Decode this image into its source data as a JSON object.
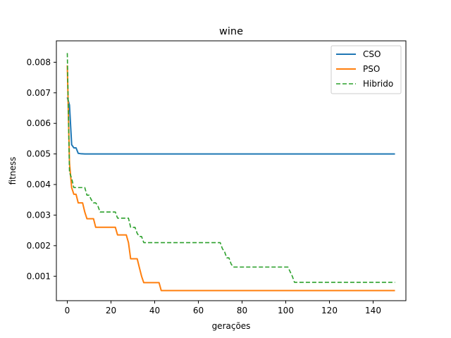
{
  "chart_data": {
    "type": "line",
    "title": "wine",
    "xlabel": "gerações",
    "ylabel": "fitness",
    "xlim": [
      -5,
      155
    ],
    "ylim": [
      0.0002,
      0.0087
    ],
    "xticks": [
      0,
      20,
      40,
      60,
      80,
      100,
      120,
      140
    ],
    "xtick_labels": [
      "0",
      "20",
      "40",
      "60",
      "80",
      "100",
      "120",
      "140"
    ],
    "yticks": [
      0.001,
      0.002,
      0.003,
      0.004,
      0.005,
      0.006,
      0.007,
      0.008
    ],
    "ytick_labels": [
      "0.001",
      "0.002",
      "0.003",
      "0.004",
      "0.005",
      "0.006",
      "0.007",
      "0.008"
    ],
    "grid": false,
    "legend_position": "top-right",
    "series": [
      {
        "name": "CSO",
        "color": "#1f77b4",
        "style": "solid",
        "x": [
          0,
          1,
          2,
          3,
          4,
          5,
          6,
          8,
          10,
          150
        ],
        "y": [
          0.00685,
          0.0066,
          0.0053,
          0.0052,
          0.0052,
          0.00502,
          0.00501,
          0.005,
          0.005,
          0.005
        ]
      },
      {
        "name": "PSO",
        "color": "#ff7f0e",
        "style": "solid",
        "x": [
          0,
          1,
          2,
          3,
          4,
          5,
          6,
          7,
          8,
          9,
          10,
          11,
          12,
          13,
          14,
          16,
          18,
          20,
          21,
          22,
          23,
          24,
          25,
          26,
          27,
          28,
          29,
          30,
          31,
          32,
          33,
          34,
          35,
          36,
          38,
          40,
          42,
          43,
          45,
          150
        ],
        "y": [
          0.0079,
          0.0047,
          0.0039,
          0.00368,
          0.00368,
          0.0034,
          0.0034,
          0.0034,
          0.0031,
          0.00288,
          0.00288,
          0.00288,
          0.00288,
          0.0026,
          0.0026,
          0.0026,
          0.0026,
          0.0026,
          0.0026,
          0.0026,
          0.00235,
          0.00235,
          0.00235,
          0.00235,
          0.00235,
          0.0021,
          0.00157,
          0.00157,
          0.00157,
          0.00157,
          0.00128,
          0.001,
          0.00079,
          0.00079,
          0.00079,
          0.00079,
          0.00079,
          0.00053,
          0.00053,
          0.00053
        ]
      },
      {
        "name": "Hibrido",
        "color": "#2ca02c",
        "style": "dashed",
        "x": [
          0,
          1,
          2,
          3,
          4,
          5,
          6,
          7,
          8,
          9,
          10,
          11,
          12,
          13,
          14,
          15,
          16,
          20,
          22,
          23,
          24,
          25,
          26,
          28,
          29,
          30,
          31,
          32,
          33,
          34,
          35,
          36,
          70,
          71,
          72,
          73,
          74,
          75,
          76,
          77,
          100,
          101,
          102,
          103,
          104,
          105,
          150
        ],
        "y": [
          0.0083,
          0.0044,
          0.0042,
          0.0039,
          0.0039,
          0.0039,
          0.0039,
          0.0039,
          0.0039,
          0.00365,
          0.00365,
          0.0035,
          0.0034,
          0.0034,
          0.0033,
          0.0031,
          0.0031,
          0.0031,
          0.0031,
          0.0029,
          0.0029,
          0.0029,
          0.0029,
          0.0029,
          0.0026,
          0.0026,
          0.0026,
          0.0024,
          0.0023,
          0.0023,
          0.0021,
          0.0021,
          0.0021,
          0.0019,
          0.0018,
          0.0016,
          0.0016,
          0.0014,
          0.0013,
          0.0013,
          0.0013,
          0.0013,
          0.00115,
          0.001,
          0.0008,
          0.0008,
          0.0008
        ]
      }
    ]
  }
}
